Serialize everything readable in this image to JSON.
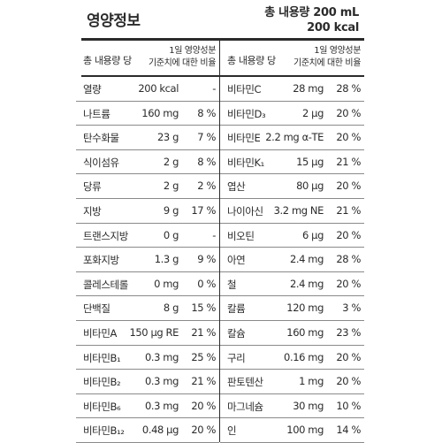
{
  "label": {
    "title": "영양정보",
    "total_volume": "총 내용량 200 mL",
    "total_kcal": "200 kcal"
  },
  "header": {
    "left_label": "총 내용량 당",
    "left_pct_line1": "1일 영양성분",
    "left_pct_line2": "기준치에 대한 비율",
    "right_label": "총 내용량 당",
    "right_pct_line1": "1일 영양성분",
    "right_pct_line2": "기준치에 대한 비율"
  },
  "left_rows": [
    {
      "name": "열량",
      "amount": "200 kcal",
      "dv": "-"
    },
    {
      "name": "나트륨",
      "amount": "160 mg",
      "dv": "8 %"
    },
    {
      "name": "탄수화물",
      "amount": "23 g",
      "dv": "7 %"
    },
    {
      "name": "식이섬유",
      "amount": "2 g",
      "dv": "8 %"
    },
    {
      "name": "당류",
      "amount": "2 g",
      "dv": "2 %"
    },
    {
      "name": "지방",
      "amount": "9 g",
      "dv": "17 %"
    },
    {
      "name": "트랜스지방",
      "amount": "0 g",
      "dv": "-"
    },
    {
      "name": "포화지방",
      "amount": "1.3 g",
      "dv": "9 %"
    },
    {
      "name": "콜레스테롤",
      "amount": "0 mg",
      "dv": "0 %"
    },
    {
      "name": "단백질",
      "amount": "8 g",
      "dv": "15 %"
    },
    {
      "name": "비타민A",
      "amount": "150 μg RE",
      "dv": "21 %"
    },
    {
      "name": "비타민B₁",
      "amount": "0.3 mg",
      "dv": "25 %"
    },
    {
      "name": "비타민B₂",
      "amount": "0.3 mg",
      "dv": "21 %"
    },
    {
      "name": "비타민B₆",
      "amount": "0.3 mg",
      "dv": "20 %"
    },
    {
      "name": "비타민B₁₂",
      "amount": "0.48 μg",
      "dv": "20 %"
    }
  ],
  "right_rows": [
    {
      "name": "비타민C",
      "amount": "28 mg",
      "dv": "28 %"
    },
    {
      "name": "비타민D₃",
      "amount": "2 μg",
      "dv": "20 %"
    },
    {
      "name": "비타민E",
      "amount": "2.2 mg α-TE",
      "dv": "20 %"
    },
    {
      "name": "비타민K₁",
      "amount": "15 μg",
      "dv": "21 %"
    },
    {
      "name": "엽산",
      "amount": "80 μg",
      "dv": "20 %"
    },
    {
      "name": "나이아신",
      "amount": "3.2 mg NE",
      "dv": "21 %"
    },
    {
      "name": "비오틴",
      "amount": "6 μg",
      "dv": "20 %"
    },
    {
      "name": "아연",
      "amount": "2.4 mg",
      "dv": "28 %"
    },
    {
      "name": "철",
      "amount": "2.4 mg",
      "dv": "20 %"
    },
    {
      "name": "칼륨",
      "amount": "120 mg",
      "dv": "3 %"
    },
    {
      "name": "칼슘",
      "amount": "160 mg",
      "dv": "23 %"
    },
    {
      "name": "구리",
      "amount": "0.16 mg",
      "dv": "20 %"
    },
    {
      "name": "판토텐산",
      "amount": "1 mg",
      "dv": "20 %"
    },
    {
      "name": "마그네슘",
      "amount": "30 mg",
      "dv": "10 %"
    },
    {
      "name": "인",
      "amount": "100 mg",
      "dv": "14 %"
    }
  ]
}
